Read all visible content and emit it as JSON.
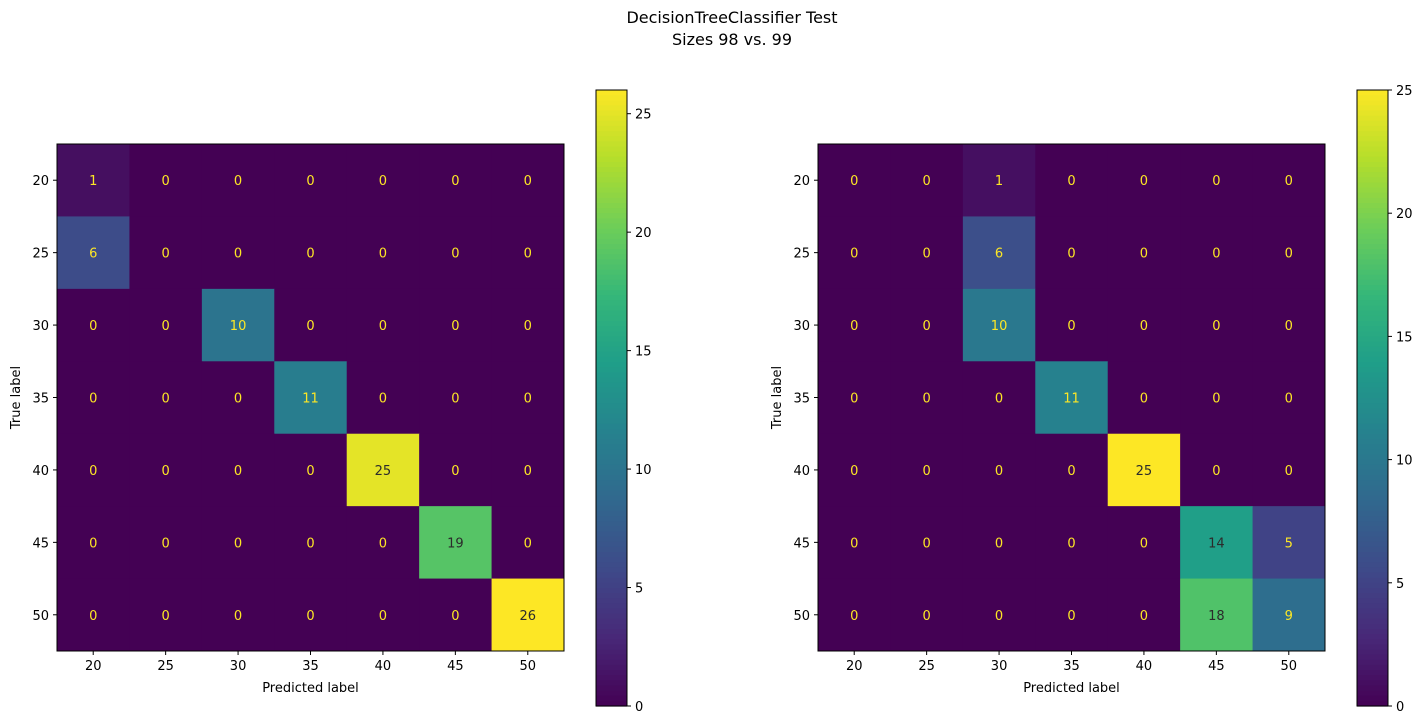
{
  "suptitle": {
    "line1": "DecisionTreeClassifier Test",
    "line2": "Sizes 98 vs. 99"
  },
  "chart_data": [
    {
      "type": "heatmap",
      "xlabel": "Predicted label",
      "ylabel": "True label",
      "x_tick_labels": [
        "20",
        "25",
        "30",
        "35",
        "40",
        "45",
        "50"
      ],
      "y_tick_labels": [
        "20",
        "25",
        "30",
        "35",
        "40",
        "45",
        "50"
      ],
      "matrix": [
        [
          1,
          0,
          0,
          0,
          0,
          0,
          0
        ],
        [
          6,
          0,
          0,
          0,
          0,
          0,
          0
        ],
        [
          0,
          0,
          10,
          0,
          0,
          0,
          0
        ],
        [
          0,
          0,
          0,
          11,
          0,
          0,
          0
        ],
        [
          0,
          0,
          0,
          0,
          25,
          0,
          0
        ],
        [
          0,
          0,
          0,
          0,
          0,
          19,
          0
        ],
        [
          0,
          0,
          0,
          0,
          0,
          0,
          26
        ]
      ],
      "colormap": "viridis",
      "vmin": 0,
      "vmax": 26,
      "colorbar_ticks": [
        0,
        5,
        10,
        15,
        20,
        25
      ]
    },
    {
      "type": "heatmap",
      "xlabel": "Predicted label",
      "ylabel": "True label",
      "x_tick_labels": [
        "20",
        "25",
        "30",
        "35",
        "40",
        "45",
        "50"
      ],
      "y_tick_labels": [
        "20",
        "25",
        "30",
        "35",
        "40",
        "45",
        "50"
      ],
      "matrix": [
        [
          0,
          0,
          1,
          0,
          0,
          0,
          0
        ],
        [
          0,
          0,
          6,
          0,
          0,
          0,
          0
        ],
        [
          0,
          0,
          10,
          0,
          0,
          0,
          0
        ],
        [
          0,
          0,
          0,
          11,
          0,
          0,
          0
        ],
        [
          0,
          0,
          0,
          0,
          25,
          0,
          0
        ],
        [
          0,
          0,
          0,
          0,
          0,
          14,
          5
        ],
        [
          0,
          0,
          0,
          0,
          0,
          18,
          9
        ]
      ],
      "colormap": "viridis",
      "vmin": 0,
      "vmax": 25,
      "colorbar_ticks": [
        0,
        5,
        10,
        15,
        20,
        25
      ]
    }
  ]
}
